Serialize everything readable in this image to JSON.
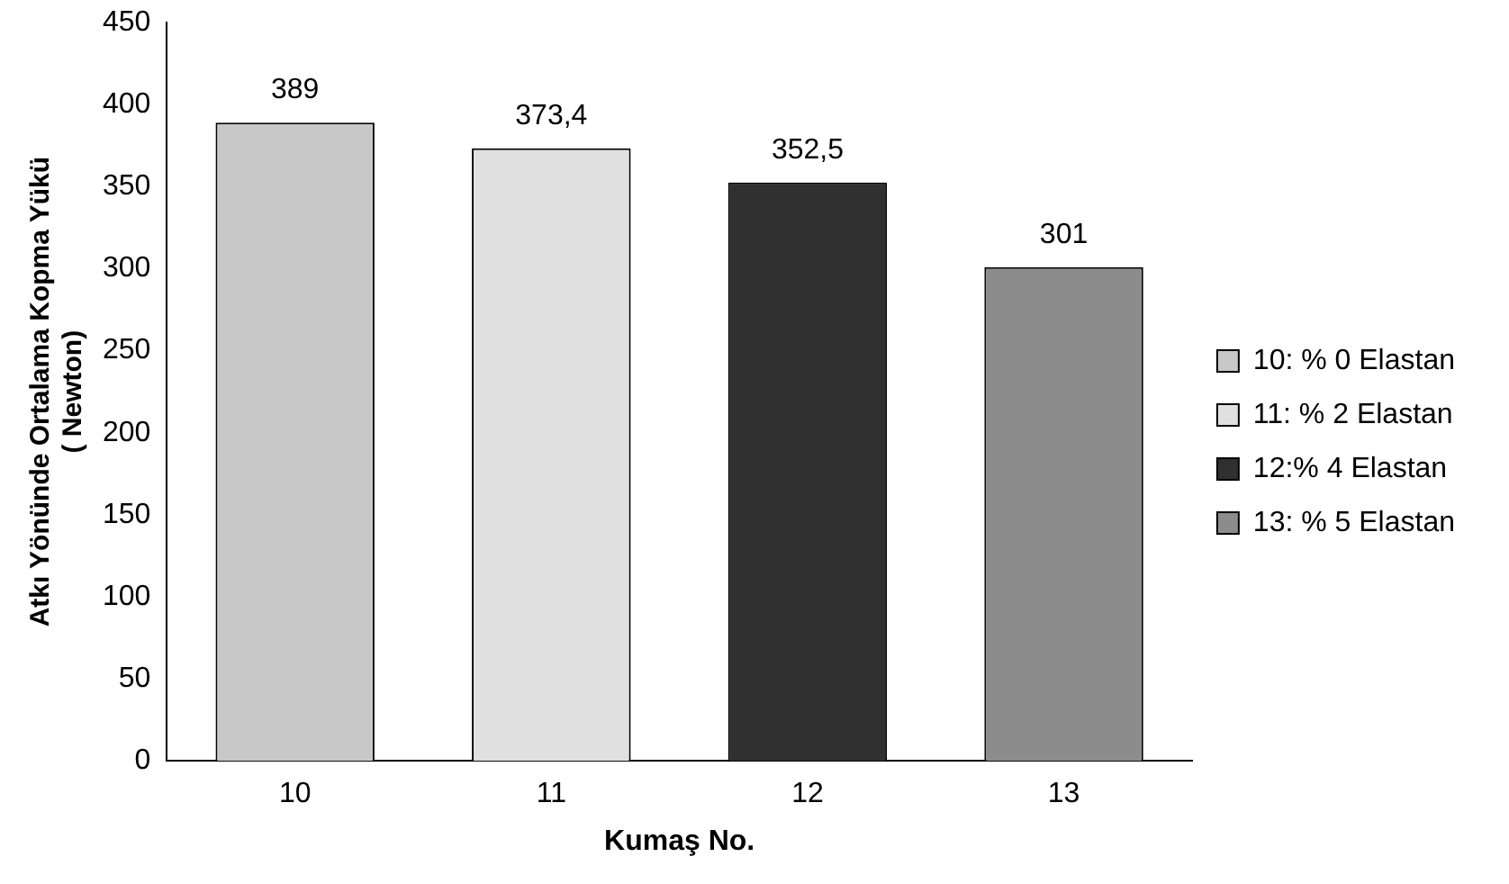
{
  "chart_data": {
    "type": "bar",
    "xlabel": "Kumaş No.",
    "ylabel": "Atkı Yönünde Ortalama Kopma Yükü\n( Newton)",
    "categories": [
      "10",
      "11",
      "12",
      "13"
    ],
    "series": [
      {
        "name": "10: % 0 Elastan",
        "color": "#c8c8c8",
        "values": [
          389,
          null,
          null,
          null
        ],
        "value_labels": [
          "389",
          null,
          null,
          null
        ]
      },
      {
        "name": "11: % 2 Elastan",
        "color": "#e0e0e0",
        "values": [
          null,
          373.4,
          null,
          null
        ],
        "value_labels": [
          null,
          "373,4",
          null,
          null
        ]
      },
      {
        "name": "12:% 4 Elastan",
        "color": "#303030",
        "values": [
          null,
          null,
          352.5,
          null
        ],
        "value_labels": [
          null,
          null,
          "352,5",
          null
        ]
      },
      {
        "name": "13: % 5 Elastan",
        "color": "#8c8c8c",
        "values": [
          null,
          null,
          null,
          301
        ],
        "value_labels": [
          null,
          null,
          null,
          "301"
        ]
      }
    ],
    "ylim": [
      0,
      450
    ],
    "yticks": [
      0,
      50,
      100,
      150,
      200,
      250,
      300,
      350,
      400,
      450
    ],
    "grid": false,
    "legend": "right"
  }
}
